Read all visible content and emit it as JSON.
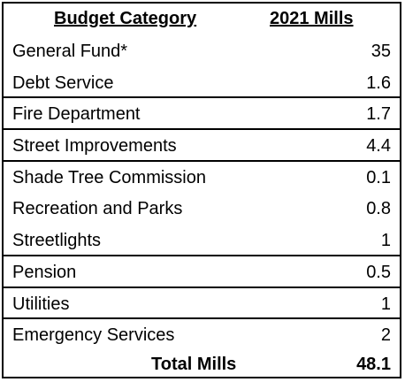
{
  "table": {
    "headers": {
      "category": "Budget Category",
      "mills": "2021 Mills"
    },
    "rows": [
      {
        "category": "General Fund*",
        "mills": "35"
      },
      {
        "category": "Debt Service",
        "mills": "1.6"
      },
      {
        "category": "Fire Department",
        "mills": "1.7"
      },
      {
        "category": "Street Improvements",
        "mills": "4.4"
      },
      {
        "category": "Shade Tree Commission",
        "mills": "0.1"
      },
      {
        "category": "Recreation and Parks",
        "mills": "0.8"
      },
      {
        "category": "Streetlights",
        "mills": "1"
      },
      {
        "category": "Pension",
        "mills": "0.5"
      },
      {
        "category": "Utilities",
        "mills": "1"
      },
      {
        "category": "Emergency Services",
        "mills": "2"
      }
    ],
    "total": {
      "label": "Total Mills",
      "mills": "48.1"
    }
  }
}
